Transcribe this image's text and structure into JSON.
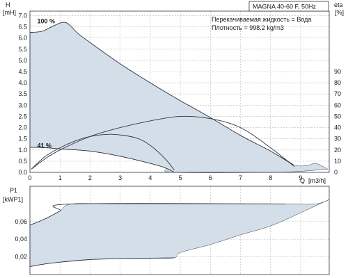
{
  "header": {
    "pump_label": "MAGNA 40-60 F, 50Hz",
    "fluid_label": "Перекачиваемая жидкость = Вода",
    "density_label": "Плотность = 998.2 kg/m3"
  },
  "colors": {
    "fill": "#d4dee9",
    "curve": "#2e3440",
    "grid": "#b8b8b8",
    "frame": "#2e3440"
  },
  "chart_data": [
    {
      "type": "line",
      "title": "",
      "ylabel": "H",
      "yunit": "[mH]",
      "ylabel_right": "eta",
      "yunit_right": "[%]",
      "xlabel": "Q",
      "xunit": "[m3/h]",
      "xlim": [
        0,
        9.95
      ],
      "ylim": [
        0,
        7.2
      ],
      "ylim_right": [
        0,
        144
      ],
      "grid": true,
      "x_ticks": [
        0,
        1,
        2,
        3,
        4,
        5,
        6,
        7,
        8,
        9
      ],
      "y_ticks": [
        "0.0",
        "0.5",
        "1.0",
        "1.5",
        "2.0",
        "2.5",
        "3.0",
        "3.5",
        "4.0",
        "4.5",
        "5.0",
        "5.5",
        "6.0",
        "6.5",
        "7.0"
      ],
      "y_ticks_right": [
        "0",
        "10",
        "20",
        "30",
        "40",
        "50",
        "60",
        "70",
        "80",
        "90"
      ],
      "annotations": [
        {
          "text": "100 %",
          "x": 0.15,
          "y": 6.75
        },
        {
          "text": "41 %",
          "x": 0.15,
          "y": 1.2
        }
      ],
      "region": {
        "upper": [
          [
            0,
            6.25
          ],
          [
            0.4,
            6.3
          ],
          [
            0.8,
            6.55
          ],
          [
            1.1,
            6.7
          ],
          [
            1.3,
            6.6
          ],
          [
            1.6,
            6.2
          ],
          [
            2.0,
            5.8
          ],
          [
            3.0,
            4.85
          ],
          [
            4.0,
            4.0
          ],
          [
            5.0,
            3.2
          ],
          [
            6.0,
            2.45
          ],
          [
            7.0,
            1.65
          ],
          [
            8.0,
            0.95
          ],
          [
            8.75,
            0.35
          ],
          [
            9.2,
            0.3
          ],
          [
            9.5,
            0.4
          ],
          [
            9.9,
            0.15
          ]
        ],
        "lower": [
          [
            9.9,
            0.15
          ],
          [
            9.5,
            0.1
          ],
          [
            9.0,
            0.05
          ],
          [
            8.0,
            0.0
          ],
          [
            4.8,
            0.0
          ],
          [
            4.5,
            0.2
          ],
          [
            4.0,
            0.4
          ],
          [
            3.0,
            0.72
          ],
          [
            2.0,
            0.95
          ],
          [
            1.0,
            1.05
          ],
          [
            0.5,
            1.1
          ],
          [
            0,
            1.12
          ]
        ]
      },
      "series": [
        {
          "name": "",
          "axis": "left",
          "values": [
            [
              0,
              6.25
            ],
            [
              0.4,
              6.3
            ],
            [
              0.8,
              6.55
            ],
            [
              1.1,
              6.7
            ],
            [
              1.3,
              6.6
            ],
            [
              1.6,
              6.2
            ],
            [
              2.0,
              5.8
            ],
            [
              3.0,
              4.85
            ],
            [
              4.0,
              4.0
            ],
            [
              5.0,
              3.2
            ],
            [
              6.0,
              2.45
            ],
            [
              7.0,
              1.65
            ],
            [
              8.0,
              0.95
            ],
            [
              8.75,
              0.35
            ]
          ]
        },
        {
          "name": "",
          "axis": "left",
          "values": [
            [
              0,
              1.12
            ],
            [
              0.5,
              1.1
            ],
            [
              1.0,
              1.05
            ],
            [
              2.0,
              0.95
            ],
            [
              3.0,
              0.72
            ],
            [
              4.0,
              0.4
            ],
            [
              4.5,
              0.2
            ],
            [
              4.8,
              0.0
            ]
          ]
        },
        {
          "name": "",
          "axis": "right",
          "values": [
            [
              0.05,
              3
            ],
            [
              0.5,
              12
            ],
            [
              1.0,
              20
            ],
            [
              2.0,
              32
            ],
            [
              3.0,
              40
            ],
            [
              4.0,
              46
            ],
            [
              5.0,
              50
            ],
            [
              6.0,
              48
            ],
            [
              7.0,
              40
            ],
            [
              8.0,
              22
            ],
            [
              8.8,
              5
            ]
          ]
        },
        {
          "name": "",
          "axis": "right",
          "values": [
            [
              0.05,
              3
            ],
            [
              0.5,
              14
            ],
            [
              1.0,
              22
            ],
            [
              1.5,
              28
            ],
            [
              2.0,
              32
            ],
            [
              2.7,
              34
            ],
            [
              3.5,
              31
            ],
            [
              4.0,
              24
            ],
            [
              4.5,
              12
            ],
            [
              4.8,
              2
            ]
          ]
        }
      ]
    },
    {
      "type": "area",
      "title": "",
      "ylabel": "P1",
      "yunit": "[kWP1]",
      "xlim": [
        0,
        9.95
      ],
      "ylim": [
        0,
        0.1
      ],
      "grid": true,
      "y_ticks": [
        "0,02",
        "0,04",
        "0,06"
      ],
      "region": {
        "upper": [
          [
            0,
            0.056
          ],
          [
            0.5,
            0.063
          ],
          [
            1.0,
            0.072
          ],
          [
            1.4,
            0.08
          ],
          [
            3.0,
            0.08
          ],
          [
            6.0,
            0.08
          ],
          [
            8.5,
            0.08
          ],
          [
            9.5,
            0.08
          ],
          [
            9.95,
            0.085
          ]
        ],
        "lower": [
          [
            9.95,
            0.085
          ],
          [
            9.0,
            0.07
          ],
          [
            8.0,
            0.055
          ],
          [
            7.0,
            0.045
          ],
          [
            6.0,
            0.034
          ],
          [
            5.0,
            0.025
          ],
          [
            4.8,
            0.019
          ],
          [
            4.0,
            0.0185
          ],
          [
            3.0,
            0.018
          ],
          [
            2.0,
            0.017
          ],
          [
            1.0,
            0.014
          ],
          [
            0.5,
            0.012
          ],
          [
            0,
            0.009
          ]
        ]
      },
      "series": [
        {
          "name": "",
          "values": [
            [
              0,
              0.056
            ],
            [
              0.5,
              0.063
            ],
            [
              1.0,
              0.072
            ],
            [
              1.4,
              0.08
            ],
            [
              8.5,
              0.08
            ]
          ]
        },
        {
          "name": "",
          "values": [
            [
              0,
              0.009
            ],
            [
              0.5,
              0.012
            ],
            [
              1.0,
              0.014
            ],
            [
              2.0,
              0.017
            ],
            [
              3.0,
              0.018
            ],
            [
              4.0,
              0.0185
            ],
            [
              4.8,
              0.019
            ]
          ]
        }
      ]
    }
  ]
}
